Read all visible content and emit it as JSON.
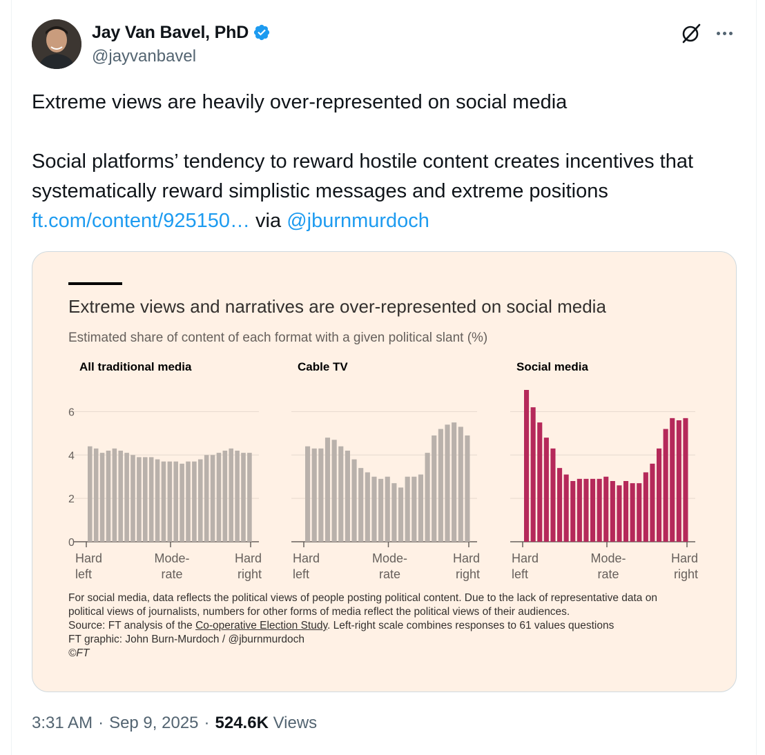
{
  "author": {
    "name": "Jay Van Bavel, PhD",
    "handle": "@jayvanbavel",
    "verified_icon": "verified-badge-icon",
    "badge_color": "#1d9bf0"
  },
  "header_actions": {
    "grok_icon": "grok-icon",
    "more_icon": "more-options-icon"
  },
  "tweet": {
    "line1": "Extreme views are heavily over-represented on social media",
    "line2": "Social platforms’ tendency to reward hostile content creates incentives that systematically reward simplistic messages and extreme positions",
    "link_text": "ft.com/content/925150…",
    "via": "via",
    "mention": "@jburnmurdoch",
    "link_color": "#1d9bf0"
  },
  "card": {
    "title": "Extreme views and narratives are over-represented on social media",
    "subtitle": "Estimated share of content of each format with a given political slant (%)",
    "notes": {
      "line1": "For social media, data reflects the political views of people posting political content. Due to the lack of representative data on",
      "line2": "political views of journalists, numbers for other forms of media reflect the political views of their audiences.",
      "source_prefix": "Source: FT analysis of the ",
      "source_link": "Co-operative Election Study",
      "source_suffix": ". Left-right scale combines responses to 61 values questions",
      "graphic": "FT graphic: John Burn-Murdoch / @jburnmurdoch",
      "copyright": "©FT"
    }
  },
  "chart_data": {
    "type": "bar",
    "title": "Extreme views and narratives are over-represented on social media",
    "subtitle": "Estimated share of content of each format with a given political slant (%)",
    "ylim": [
      0,
      7
    ],
    "yticks": [
      0,
      2,
      4,
      6
    ],
    "x_tick_labels": [
      {
        "pos": "start",
        "lines": [
          "Hard",
          "left"
        ]
      },
      {
        "pos": "middle",
        "lines": [
          "Mode-",
          "rate"
        ]
      },
      {
        "pos": "end",
        "lines": [
          "Hard",
          "right"
        ]
      }
    ],
    "grid": true,
    "panels": [
      {
        "name": "All traditional media",
        "color": "#b9b1ab",
        "values": [
          4.4,
          4.3,
          4.1,
          4.2,
          4.3,
          4.2,
          4.1,
          4.0,
          3.9,
          3.9,
          3.9,
          3.8,
          3.7,
          3.7,
          3.7,
          3.6,
          3.7,
          3.7,
          3.8,
          4.0,
          4.0,
          4.1,
          4.2,
          4.3,
          4.2,
          4.1,
          4.1
        ]
      },
      {
        "name": "Cable TV",
        "color": "#b9b1ab",
        "values": [
          4.4,
          4.3,
          4.3,
          4.8,
          4.7,
          4.4,
          4.2,
          3.8,
          3.4,
          3.2,
          3.0,
          2.9,
          3.0,
          2.7,
          2.5,
          3.0,
          3.0,
          3.1,
          4.1,
          4.9,
          5.2,
          5.4,
          5.5,
          5.3,
          4.9
        ]
      },
      {
        "name": "Social media",
        "color": "#b5295a",
        "values": [
          7.0,
          6.2,
          5.5,
          4.8,
          4.3,
          3.4,
          3.1,
          2.8,
          2.9,
          2.9,
          2.9,
          2.9,
          3.0,
          2.8,
          2.6,
          2.8,
          2.7,
          2.7,
          3.2,
          3.6,
          4.3,
          5.2,
          5.7,
          5.6,
          5.7
        ]
      }
    ]
  },
  "footer": {
    "time": "3:31 AM",
    "dot1": "·",
    "date": "Sep 9, 2025",
    "dot2": "·",
    "views_count": "524.6K",
    "views_label": "Views"
  }
}
